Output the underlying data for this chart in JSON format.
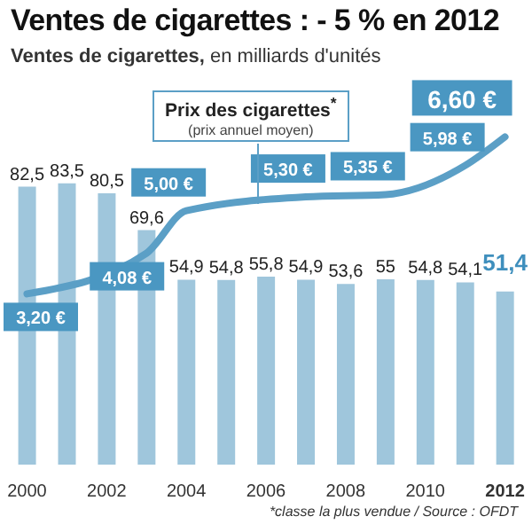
{
  "chart_data": {
    "type": "bar",
    "title": "Ventes de cigarettes : - 5 % en 2012",
    "subtitle": "Ventes de cigarettes, en milliards d'unités",
    "categories": [
      "2000",
      null,
      "2002",
      null,
      "2004",
      null,
      "2006",
      null,
      "2008",
      null,
      "2010",
      null,
      "2012"
    ],
    "series": [
      {
        "color": "#9fc6dc",
        "values": [
          82.5,
          83.5,
          80.5,
          69.6,
          54.9,
          54.8,
          55.8,
          54.9,
          53.6,
          55,
          54.8,
          54.1,
          51.4
        ],
        "value_labels": [
          "82,5",
          "83,5",
          "80,5",
          "69,6",
          "54,9",
          "54,8",
          "55,8",
          "54,9",
          "53,6",
          "55",
          "54,8",
          "54,1",
          "51,4"
        ]
      },
      {
        "type": "line",
        "name": "Prix des cigarettes$^{*}$",
        "color": "#5b9fc6",
        "axis": "y2",
        "values": [
          3.2,
          null,
          null,
          4.08,
          5.0,
          null,
          null,
          5.3,
          null,
          5.35,
          null,
          5.98,
          6.6
        ],
        "value_labels": [
          "3,20 €",
          null,
          null,
          "4,08 €",
          "5,00 €",
          null,
          null,
          "5,30 €",
          null,
          "5,35 €",
          null,
          "5,98 €",
          "6,60 €"
        ]
      }
    ],
    "ylim": [
      0,
      100
    ],
    "y2lim": [
      -0.5,
      6.8
    ],
    "tick_labels": "x",
    "marker": "none",
    "line_style": "solid",
    "annotations": [
      "(prix annuel moyen)",
      "*classe la plus vendue / Source : OFDT"
    ]
  }
}
